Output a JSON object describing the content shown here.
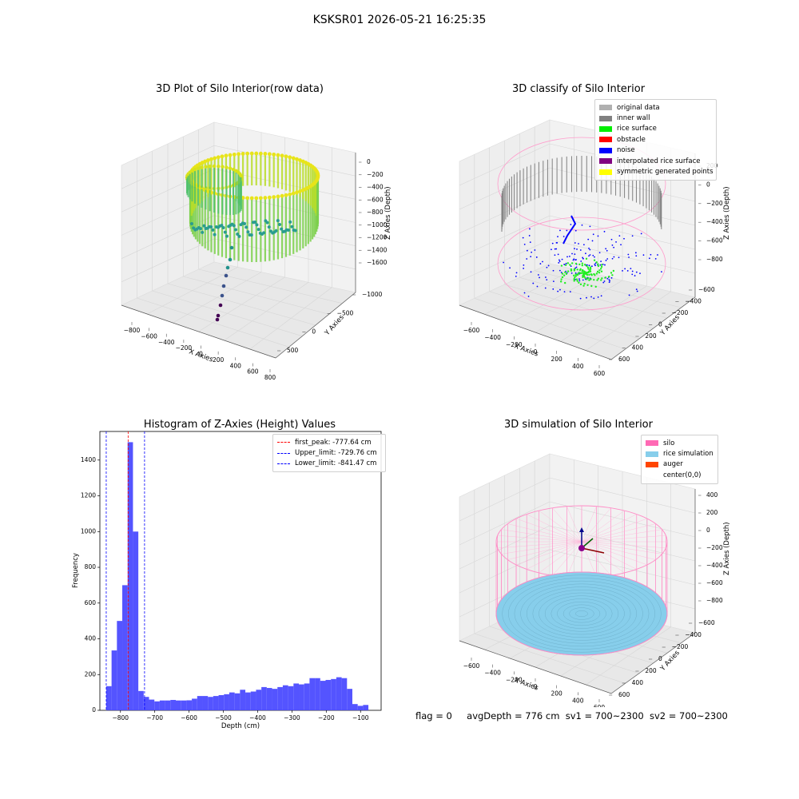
{
  "figure": {
    "suptitle": "KSKSR01 2026-05-21 16:25:35",
    "footer": {
      "flag": "flag = 0",
      "avg_depth": "avgDepth = 776 cm",
      "sv1": "sv1 = 700~2300",
      "sv2": "sv2 = 700~2300"
    }
  },
  "colors": {
    "histogram_bar": "#4b4bff",
    "first_peak_line": "#ff0000",
    "limit_lines": "#0000ff",
    "silo_wire": "#ff6eb4",
    "rice_sim": "#87ceeb",
    "auger": "#ff4500",
    "inner_wall": "#808080",
    "rice_surface": "#00ee00",
    "noise": "#0000ff"
  },
  "plot1": {
    "title": "3D Plot of Silo Interior(row data)",
    "xlabel": "X Axies",
    "ylabel": "Y Axies",
    "zlabel": "Z Axies (Depth)",
    "xticks": [
      "−800",
      "−600",
      "−400",
      "−200",
      "0",
      "200",
      "400",
      "600",
      "800"
    ],
    "yticks": [
      "−1000",
      "−500",
      "0",
      "500"
    ],
    "zticks": [
      "0",
      "−200",
      "−400",
      "−600",
      "−800",
      "−1000",
      "−1200",
      "−1400",
      "−1600"
    ],
    "colormap": "viridis"
  },
  "plot2": {
    "title": "3D classify of Silo Interior",
    "xlabel": "X Axies",
    "ylabel": "Y Axies",
    "zlabel": "Z Axies (Depth)",
    "xticks": [
      "−600",
      "−400",
      "−200",
      "0",
      "200",
      "400",
      "600"
    ],
    "yticks": [
      "−600",
      "−400",
      "−200",
      "0",
      "200",
      "400",
      "600"
    ],
    "zticks": [
      "200",
      "0",
      "−200",
      "−400",
      "−600",
      "−800"
    ],
    "legend": [
      {
        "label": "original data",
        "color": "#b0b0b0"
      },
      {
        "label": "inner wall",
        "color": "#808080"
      },
      {
        "label": "rice surface",
        "color": "#00ee00"
      },
      {
        "label": "obstacle",
        "color": "#ff0000"
      },
      {
        "label": "noise",
        "color": "#0000ff"
      },
      {
        "label": "interpolated rice surface",
        "color": "#800080"
      },
      {
        "label": "symmetric generated points",
        "color": "#ffff00"
      }
    ]
  },
  "plot4": {
    "title": "3D simulation of Silo Interior",
    "xlabel": "X Axies",
    "ylabel": "Y Axies",
    "zlabel": "Z Axies (Depth)",
    "xticks": [
      "−600",
      "−400",
      "−200",
      "0",
      "200",
      "400",
      "600"
    ],
    "yticks": [
      "−600",
      "−400",
      "−200",
      "0",
      "200",
      "400",
      "600"
    ],
    "zticks": [
      "400",
      "200",
      "0",
      "−200",
      "−400",
      "−600",
      "−800"
    ],
    "legend": [
      {
        "label": "silo",
        "color": "#ff69b4"
      },
      {
        "label": "rice simulation",
        "color": "#87ceeb"
      },
      {
        "label": "auger",
        "color": "#ff4500"
      },
      {
        "label": "center(0,0)",
        "color": ""
      }
    ]
  },
  "chart_data": [
    {
      "type": "histogram",
      "title": "Histogram of Z-Axies (Height) Values",
      "xlabel": "Depth (cm)",
      "ylabel": "Frequency",
      "xlim": [
        -860,
        -40
      ],
      "ylim": [
        0,
        1560
      ],
      "xticks": [
        -800,
        -700,
        -600,
        -500,
        -400,
        -300,
        -200,
        -100
      ],
      "yticks": [
        0,
        200,
        400,
        600,
        800,
        1000,
        1200,
        1400
      ],
      "bin_width": 15.6,
      "bin_start": -841.5,
      "values": [
        135,
        335,
        500,
        700,
        1500,
        1000,
        108,
        75,
        60,
        50,
        55,
        55,
        58,
        55,
        55,
        56,
        65,
        80,
        80,
        75,
        80,
        85,
        90,
        100,
        95,
        115,
        100,
        105,
        115,
        130,
        125,
        120,
        130,
        140,
        135,
        150,
        145,
        150,
        180,
        180,
        165,
        170,
        175,
        185,
        180,
        120,
        35,
        25,
        30
      ],
      "vlines": [
        {
          "label": "first_peak: -777.64 cm",
          "x": -777.64,
          "color": "#ff0000"
        },
        {
          "label": "Upper_limit: -729.76 cm",
          "x": -729.76,
          "color": "#0000ff"
        },
        {
          "label": "Lower_limit: -841.47 cm",
          "x": -841.47,
          "color": "#0000ff"
        }
      ],
      "legend_position": "upper right"
    }
  ]
}
